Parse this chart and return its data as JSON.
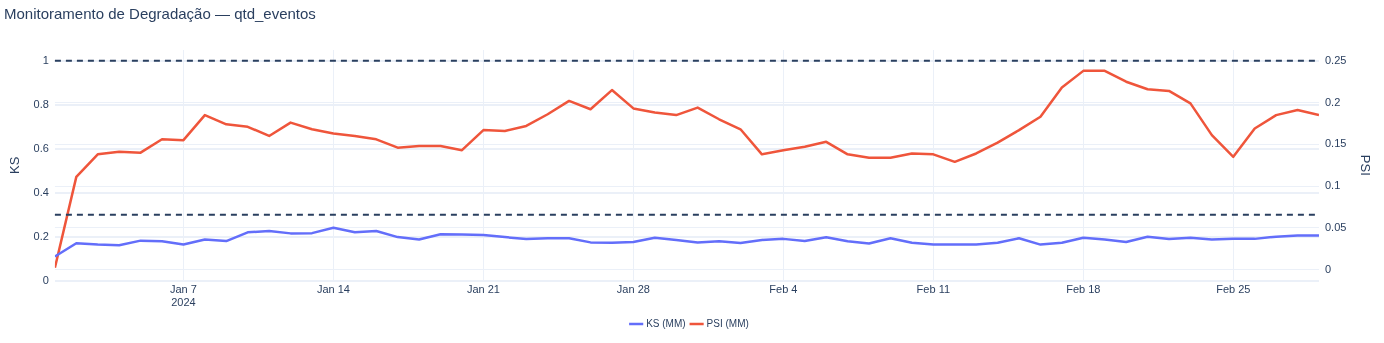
{
  "chart_data": {
    "type": "line",
    "title": "Monitoramento de Degradação — qtd_eventos",
    "ylabel": "KS",
    "y2label": "PSI",
    "x": [
      "2024-01-01",
      "2024-01-02",
      "2024-01-03",
      "2024-01-04",
      "2024-01-05",
      "2024-01-06",
      "2024-01-07",
      "2024-01-08",
      "2024-01-09",
      "2024-01-10",
      "2024-01-11",
      "2024-01-12",
      "2024-01-13",
      "2024-01-14",
      "2024-01-15",
      "2024-01-16",
      "2024-01-17",
      "2024-01-18",
      "2024-01-19",
      "2024-01-20",
      "2024-01-21",
      "2024-01-22",
      "2024-01-23",
      "2024-01-24",
      "2024-01-25",
      "2024-01-26",
      "2024-01-27",
      "2024-01-28",
      "2024-01-29",
      "2024-01-30",
      "2024-01-31",
      "2024-02-01",
      "2024-02-02",
      "2024-02-03",
      "2024-02-04",
      "2024-02-05",
      "2024-02-06",
      "2024-02-07",
      "2024-02-08",
      "2024-02-09",
      "2024-02-10",
      "2024-02-11",
      "2024-02-12",
      "2024-02-13",
      "2024-02-14",
      "2024-02-15",
      "2024-02-16",
      "2024-02-17",
      "2024-02-18",
      "2024-02-19",
      "2024-02-20",
      "2024-02-21",
      "2024-02-22",
      "2024-02-23",
      "2024-02-24",
      "2024-02-25",
      "2024-02-26",
      "2024-02-27",
      "2024-02-28",
      "2024-02-29"
    ],
    "series": [
      {
        "name": "KS (MM)",
        "color": "#636efa",
        "axis": "y",
        "values": [
          0.11,
          0.17,
          0.164,
          0.161,
          0.182,
          0.179,
          0.164,
          0.187,
          0.18,
          0.22,
          0.226,
          0.215,
          0.216,
          0.241,
          0.22,
          0.226,
          0.198,
          0.187,
          0.211,
          0.21,
          0.208,
          0.198,
          0.189,
          0.193,
          0.193,
          0.174,
          0.172,
          0.176,
          0.195,
          0.185,
          0.174,
          0.179,
          0.171,
          0.185,
          0.19,
          0.18,
          0.197,
          0.179,
          0.169,
          0.193,
          0.172,
          0.164,
          0.164,
          0.164,
          0.172,
          0.193,
          0.164,
          0.172,
          0.195,
          0.187,
          0.176,
          0.2,
          0.189,
          0.195,
          0.187,
          0.19,
          0.19,
          0.2,
          0.205,
          0.205
        ]
      },
      {
        "name": "PSI (MM)",
        "color": "#ef553b",
        "axis": "y2",
        "values": [
          0.002,
          0.111,
          0.138,
          0.141,
          0.14,
          0.156,
          0.155,
          0.185,
          0.174,
          0.171,
          0.16,
          0.176,
          0.168,
          0.163,
          0.16,
          0.156,
          0.146,
          0.148,
          0.148,
          0.143,
          0.167,
          0.166,
          0.172,
          0.186,
          0.202,
          0.192,
          0.215,
          0.193,
          0.188,
          0.185,
          0.194,
          0.18,
          0.168,
          0.138,
          0.143,
          0.147,
          0.153,
          0.138,
          0.134,
          0.134,
          0.139,
          0.138,
          0.129,
          0.139,
          0.152,
          0.167,
          0.183,
          0.218,
          0.238,
          0.238,
          0.225,
          0.216,
          0.214,
          0.199,
          0.161,
          0.135,
          0.169,
          0.185,
          0.191,
          0.185
        ]
      }
    ],
    "xlim": [
      "2024-01-01",
      "2024-02-29"
    ],
    "xticks": [
      {
        "value": "2024-01-07",
        "label": "Jan 7\n2024"
      },
      {
        "value": "2024-01-14",
        "label": "Jan 14"
      },
      {
        "value": "2024-01-21",
        "label": "Jan 21"
      },
      {
        "value": "2024-01-28",
        "label": "Jan 28"
      },
      {
        "value": "2024-02-04",
        "label": "Feb 4"
      },
      {
        "value": "2024-02-11",
        "label": "Feb 11"
      },
      {
        "value": "2024-02-18",
        "label": "Feb 18"
      },
      {
        "value": "2024-02-25",
        "label": "Feb 25"
      }
    ],
    "ylim": [
      0,
      1.05
    ],
    "yticks": [
      0,
      0.2,
      0.4,
      0.6,
      0.8,
      1
    ],
    "y2lim": [
      -0.0133,
      0.263
    ],
    "y2ticks": [
      0,
      0.05,
      0.1,
      0.15,
      0.2,
      0.25
    ],
    "ref_lines": [
      {
        "axis": "y",
        "value": 0.3,
        "color": "#2a3f5f",
        "line_style": "dashed"
      },
      {
        "axis": "y2",
        "value": 0.25,
        "color": "#2a3f5f",
        "line_style": "dashed"
      }
    ],
    "grid": true,
    "legend": "bottom",
    "marker": "none",
    "line_style": "solid"
  }
}
